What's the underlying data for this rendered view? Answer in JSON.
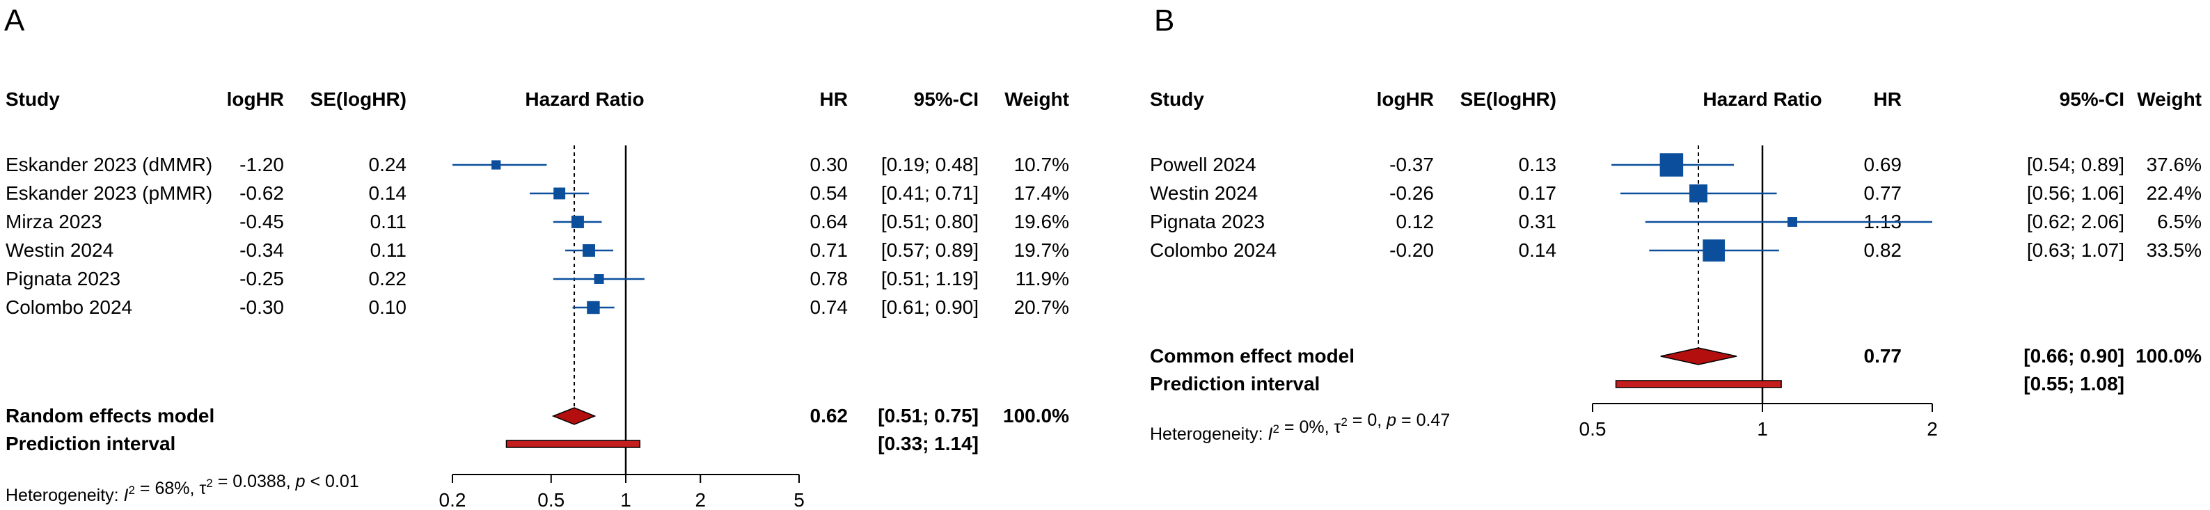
{
  "chart_data": [
    {
      "type": "forest",
      "panel_label": "A",
      "scale": "log",
      "xlim": [
        0.2,
        5
      ],
      "ticks": [
        0.2,
        0.5,
        1,
        2,
        5
      ],
      "tick_labels": [
        "0.2",
        "0.5",
        "1",
        "2",
        "5"
      ],
      "null_value": 1,
      "headers": {
        "study": "Study",
        "loghr": "logHR",
        "se": "SE(logHR)",
        "plot": "Hazard Ratio",
        "hr": "HR",
        "ci": "95%-CI",
        "weight": "Weight"
      },
      "studies": [
        {
          "name": "Eskander 2023 (dMMR)",
          "loghr": "-1.20",
          "se": "0.24",
          "hr": 0.3,
          "lower": 0.19,
          "upper": 0.48,
          "hr_label": "0.30",
          "ci_label": "[0.19; 0.48]",
          "weight": 10.7,
          "weight_label": "10.7%"
        },
        {
          "name": "Eskander 2023 (pMMR)",
          "loghr": "-0.62",
          "se": "0.14",
          "hr": 0.54,
          "lower": 0.41,
          "upper": 0.71,
          "hr_label": "0.54",
          "ci_label": "[0.41; 0.71]",
          "weight": 17.4,
          "weight_label": "17.4%"
        },
        {
          "name": "Mirza 2023",
          "loghr": "-0.45",
          "se": "0.11",
          "hr": 0.64,
          "lower": 0.51,
          "upper": 0.8,
          "hr_label": "0.64",
          "ci_label": "[0.51; 0.80]",
          "weight": 19.6,
          "weight_label": "19.6%"
        },
        {
          "name": "Westin 2024",
          "loghr": "-0.34",
          "se": "0.11",
          "hr": 0.71,
          "lower": 0.57,
          "upper": 0.89,
          "hr_label": "0.71",
          "ci_label": "[0.57; 0.89]",
          "weight": 19.7,
          "weight_label": "19.7%"
        },
        {
          "name": "Pignata 2023",
          "loghr": "-0.25",
          "se": "0.22",
          "hr": 0.78,
          "lower": 0.51,
          "upper": 1.19,
          "hr_label": "0.78",
          "ci_label": "[0.51; 1.19]",
          "weight": 11.9,
          "weight_label": "11.9%"
        },
        {
          "name": "Colombo 2024",
          "loghr": "-0.30",
          "se": "0.10",
          "hr": 0.74,
          "lower": 0.61,
          "upper": 0.9,
          "hr_label": "0.74",
          "ci_label": "[0.61; 0.90]",
          "weight": 20.7,
          "weight_label": "20.7%"
        }
      ],
      "summary": {
        "name": "Random effects model",
        "hr": 0.62,
        "lower": 0.51,
        "upper": 0.75,
        "hr_label": "0.62",
        "ci_label": "[0.51; 0.75]",
        "weight_label": "100.0%"
      },
      "prediction": {
        "name": "Prediction interval",
        "lower": 0.33,
        "upper": 1.14,
        "ci_label": "[0.33; 1.14]"
      },
      "heterogeneity": {
        "prefix": "Heterogeneity: ",
        "i2": "68%",
        "tau2": "0.0388",
        "p": "< 0.01"
      }
    },
    {
      "type": "forest",
      "panel_label": "B",
      "scale": "log",
      "xlim": [
        0.5,
        2
      ],
      "ticks": [
        0.5,
        1,
        2
      ],
      "tick_labels": [
        "0.5",
        "1",
        "2"
      ],
      "null_value": 1,
      "headers": {
        "study": "Study",
        "loghr": "logHR",
        "se": "SE(logHR)",
        "plot": "Hazard Ratio",
        "hr": "HR",
        "ci": "95%-CI",
        "weight": "Weight"
      },
      "studies": [
        {
          "name": "Powell 2024",
          "loghr": "-0.37",
          "se": "0.13",
          "hr": 0.69,
          "lower": 0.54,
          "upper": 0.89,
          "hr_label": "0.69",
          "ci_label": "[0.54; 0.89]",
          "weight": 37.6,
          "weight_label": "37.6%"
        },
        {
          "name": "Westin 2024",
          "loghr": "-0.26",
          "se": "0.17",
          "hr": 0.77,
          "lower": 0.56,
          "upper": 1.06,
          "hr_label": "0.77",
          "ci_label": "[0.56; 1.06]",
          "weight": 22.4,
          "weight_label": "22.4%"
        },
        {
          "name": "Pignata 2023",
          "loghr": "0.12",
          "se": "0.31",
          "hr": 1.13,
          "lower": 0.62,
          "upper": 2.06,
          "hr_label": "1.13",
          "ci_label": "[0.62; 2.06]",
          "weight": 6.5,
          "weight_label": "6.5%"
        },
        {
          "name": "Colombo 2024",
          "loghr": "-0.20",
          "se": "0.14",
          "hr": 0.82,
          "lower": 0.63,
          "upper": 1.07,
          "hr_label": "0.82",
          "ci_label": "[0.63; 1.07]",
          "weight": 33.5,
          "weight_label": "33.5%"
        }
      ],
      "summary": {
        "name": "Common effect model",
        "hr": 0.77,
        "lower": 0.66,
        "upper": 0.9,
        "hr_label": "0.77",
        "ci_label": "[0.66; 0.90]",
        "weight_label": "100.0%"
      },
      "prediction": {
        "name": "Prediction interval",
        "lower": 0.55,
        "upper": 1.08,
        "ci_label": "[0.55; 1.08]"
      },
      "heterogeneity": {
        "prefix": "Heterogeneity: ",
        "i2": "0%",
        "tau2": "0",
        "p": "= 0.47"
      }
    }
  ],
  "colors": {
    "study_box": "#0b4f9c",
    "ci_line": "#0b4f9c",
    "diamond": "#b30f0f",
    "prediction_bar": "#c41e1e",
    "axis": "#000000"
  }
}
